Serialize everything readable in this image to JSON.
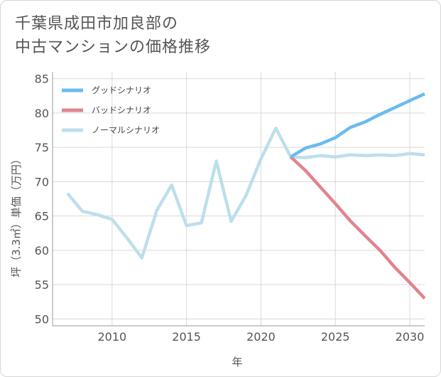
{
  "title": {
    "line1": "千葉県成田市加良部の",
    "line2": "中古マンションの価格推移"
  },
  "colors": {
    "good": "#6BBBEF",
    "bad": "#E0848E",
    "normal": "#BDDFEC",
    "grid": "#d9d9d9",
    "axis": "#999999"
  },
  "chart_data": {
    "type": "line",
    "title": "千葉県成田市加良部の中古マンションの価格推移",
    "xlabel": "年",
    "ylabel": "坪（3.3㎡）単価（万円）",
    "xlim": [
      2006,
      2031
    ],
    "ylim": [
      49,
      86
    ],
    "xticks": [
      2010,
      2015,
      2020,
      2025,
      2030
    ],
    "yticks": [
      50,
      55,
      60,
      65,
      70,
      75,
      80,
      85
    ],
    "xtick_labels": [
      "2010",
      "2015",
      "2020",
      "2025",
      "2030"
    ],
    "ytick_labels": [
      "50",
      "55",
      "60",
      "65",
      "70",
      "75",
      "80",
      "85"
    ],
    "legend_position": "top-left",
    "series": [
      {
        "name": "グッドシナリオ",
        "color": "#6BBBEF",
        "x": [
          2022,
          2023,
          2024,
          2025,
          2026,
          2027,
          2028,
          2029,
          2030,
          2031
        ],
        "y": [
          73.6,
          74.9,
          75.5,
          76.4,
          77.9,
          78.7,
          79.8,
          80.8,
          81.8,
          82.8
        ]
      },
      {
        "name": "バッドシナリオ",
        "color": "#E0848E",
        "x": [
          2022,
          2023,
          2024,
          2025,
          2026,
          2027,
          2028,
          2029,
          2030,
          2031
        ],
        "y": [
          73.6,
          71.6,
          69.2,
          66.8,
          64.3,
          62.1,
          60.0,
          57.5,
          55.3,
          53.0
        ]
      },
      {
        "name": "ノーマルシナリオ",
        "color": "#BDDFEC",
        "x": [
          2007,
          2008,
          2009,
          2010,
          2011,
          2012,
          2013,
          2014,
          2015,
          2016,
          2017,
          2018,
          2019,
          2020,
          2021,
          2022,
          2023,
          2024,
          2025,
          2026,
          2027,
          2028,
          2029,
          2030,
          2031
        ],
        "y": [
          68.3,
          65.7,
          65.2,
          64.5,
          61.8,
          58.9,
          65.8,
          69.5,
          63.6,
          64.0,
          73.0,
          64.2,
          68.0,
          73.3,
          77.8,
          73.6,
          73.5,
          73.8,
          73.6,
          73.9,
          73.8,
          73.9,
          73.8,
          74.1,
          73.9
        ]
      }
    ]
  }
}
